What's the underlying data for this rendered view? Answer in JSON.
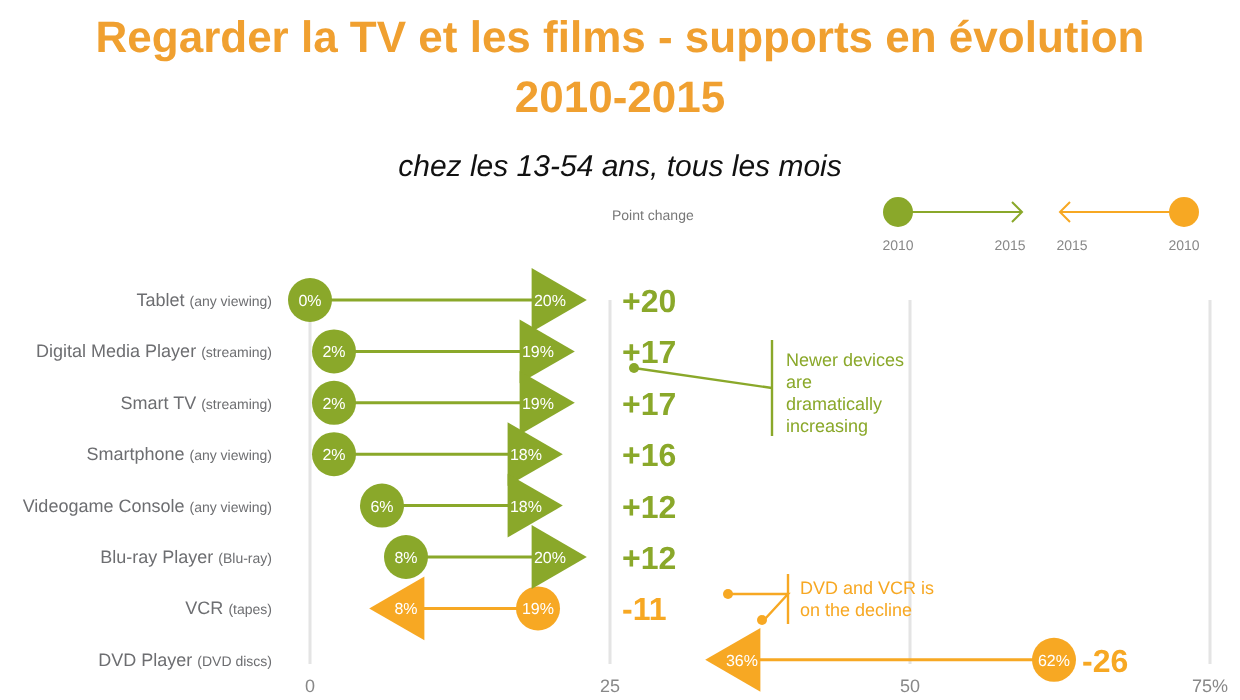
{
  "chart_data": {
    "type": "scatter",
    "orientation": "horizontal",
    "title": "Regarder la TV et les films - supports en évolution 2010-2015",
    "subtitle": "chez les 13-54 ans, tous les mois",
    "categories": [
      "Tablet (any viewing)",
      "Digital Media Player (streaming)",
      "Smart TV (streaming)",
      "Smartphone (any viewing)",
      "Videogame Console (any viewing)",
      "Blu-ray Player (Blu-ray)",
      "VCR (tapes)",
      "DVD Player (DVD discs)"
    ],
    "series": [
      {
        "name": "2010",
        "marker": "circle",
        "colors": [
          "#8aa82a",
          "#8aa82a",
          "#8aa82a",
          "#8aa82a",
          "#8aa82a",
          "#8aa82a",
          "#f7a823",
          "#f7a823"
        ],
        "values": [
          0,
          2,
          2,
          2,
          6,
          8,
          19,
          62
        ],
        "value_labels": [
          "0%",
          "2%",
          "2%",
          "2%",
          "6%",
          "8%",
          "19%",
          "62%"
        ]
      },
      {
        "name": "2015",
        "marker": "triangle",
        "colors": [
          "#8aa82a",
          "#8aa82a",
          "#8aa82a",
          "#8aa82a",
          "#8aa82a",
          "#8aa82a",
          "#f7a823",
          "#f7a823"
        ],
        "values": [
          20,
          19,
          19,
          18,
          18,
          20,
          8,
          36
        ],
        "value_labels": [
          "20%",
          "19%",
          "19%",
          "18%",
          "18%",
          "20%",
          "8%",
          "36%"
        ]
      }
    ],
    "xlim": [
      0,
      75
    ],
    "xticks": [
      0,
      25,
      50,
      {
        "value": 75,
        "label": "75%"
      }
    ],
    "grid": "x",
    "legend": "top right",
    "legend_title": "Point change",
    "annotations": [
      "+20",
      "+17",
      "+17",
      "+16",
      "+12",
      "+12",
      "-11",
      "-26",
      "Newer devices are dramatically increasing",
      "DVD and VCR is on the decline"
    ]
  }
}
